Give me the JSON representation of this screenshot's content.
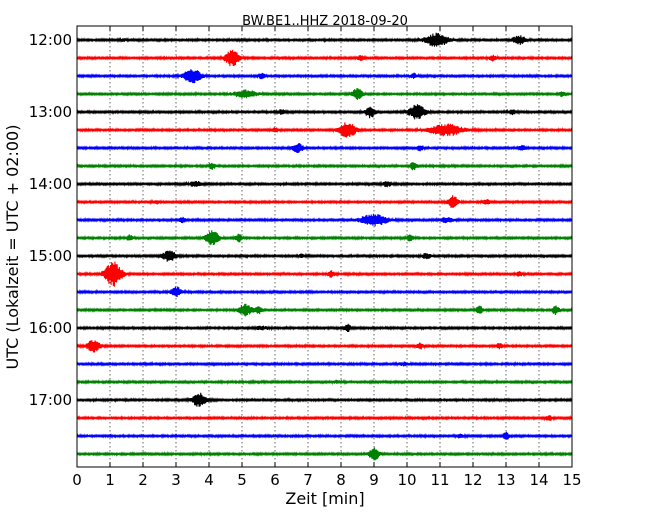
{
  "chart_data": {
    "type": "line",
    "title": "BW.BE1..HHZ 2018-09-20",
    "xlabel": "Zeit  [min]",
    "ylabel": "UTC (Lokalzeit = UTC + 02:00)",
    "xlim": [
      0,
      15
    ],
    "x_ticks": [
      "0",
      "1",
      "2",
      "3",
      "4",
      "5",
      "6",
      "7",
      "8",
      "9",
      "10",
      "11",
      "12",
      "13",
      "14",
      "15"
    ],
    "y_ticks": [
      "12:00",
      "13:00",
      "14:00",
      "15:00",
      "16:00",
      "17:00"
    ],
    "grid": "vertical dotted",
    "trace_colors": [
      "#000000",
      "#ff0000",
      "#0000ff",
      "#008000"
    ],
    "series": [
      {
        "start": "12:00",
        "color": "#000000",
        "events": [
          [
            10.9,
            0.8,
            0.35
          ],
          [
            13.4,
            0.5,
            0.2
          ],
          [
            1.4,
            0.15,
            0.1
          ]
        ]
      },
      {
        "start": "12:15",
        "color": "#ff0000",
        "events": [
          [
            4.7,
            1.0,
            0.2
          ],
          [
            8.6,
            0.4,
            0.1
          ],
          [
            12.6,
            0.35,
            0.1
          ]
        ]
      },
      {
        "start": "12:30",
        "color": "#0000ff",
        "events": [
          [
            3.5,
            0.9,
            0.25
          ],
          [
            5.6,
            0.4,
            0.1
          ],
          [
            10.2,
            0.3,
            0.1
          ]
        ]
      },
      {
        "start": "12:45",
        "color": "#008000",
        "events": [
          [
            8.5,
            0.7,
            0.15
          ],
          [
            5.1,
            0.45,
            0.35
          ],
          [
            14.7,
            0.3,
            0.1
          ]
        ]
      },
      {
        "start": "13:00",
        "color": "#000000",
        "events": [
          [
            8.9,
            0.7,
            0.15
          ],
          [
            10.3,
            0.9,
            0.25
          ],
          [
            6.2,
            0.3,
            0.1
          ],
          [
            13.2,
            0.3,
            0.1
          ]
        ]
      },
      {
        "start": "13:15",
        "color": "#ff0000",
        "events": [
          [
            8.2,
            1.0,
            0.25
          ],
          [
            11.2,
            0.7,
            0.5
          ],
          [
            6.0,
            0.3,
            0.1
          ]
        ]
      },
      {
        "start": "13:30",
        "color": "#0000ff",
        "events": [
          [
            6.7,
            0.6,
            0.15
          ],
          [
            10.4,
            0.35,
            0.1
          ],
          [
            13.5,
            0.3,
            0.1
          ]
        ]
      },
      {
        "start": "13:45",
        "color": "#008000",
        "events": [
          [
            4.1,
            0.4,
            0.1
          ],
          [
            10.2,
            0.5,
            0.1
          ]
        ]
      },
      {
        "start": "14:00",
        "color": "#000000",
        "events": [
          [
            3.6,
            0.3,
            0.2
          ],
          [
            9.4,
            0.3,
            0.15
          ]
        ]
      },
      {
        "start": "14:15",
        "color": "#ff0000",
        "events": [
          [
            11.4,
            0.8,
            0.15
          ],
          [
            12.4,
            0.35,
            0.1
          ],
          [
            2.4,
            0.2,
            0.1
          ]
        ]
      },
      {
        "start": "14:30",
        "color": "#0000ff",
        "events": [
          [
            9.0,
            0.7,
            0.4
          ],
          [
            3.2,
            0.3,
            0.1
          ],
          [
            11.2,
            0.3,
            0.2
          ]
        ]
      },
      {
        "start": "14:45",
        "color": "#008000",
        "events": [
          [
            4.1,
            0.9,
            0.2
          ],
          [
            4.9,
            0.5,
            0.1
          ],
          [
            1.6,
            0.35,
            0.1
          ],
          [
            10.1,
            0.4,
            0.1
          ]
        ]
      },
      {
        "start": "15:00",
        "color": "#000000",
        "events": [
          [
            2.8,
            0.7,
            0.2
          ],
          [
            10.6,
            0.3,
            0.15
          ],
          [
            6.8,
            0.2,
            0.1
          ]
        ]
      },
      {
        "start": "15:15",
        "color": "#ff0000",
        "events": [
          [
            1.1,
            1.5,
            0.25
          ],
          [
            7.7,
            0.4,
            0.1
          ],
          [
            13.4,
            0.3,
            0.1
          ]
        ]
      },
      {
        "start": "15:30",
        "color": "#0000ff",
        "events": [
          [
            3.0,
            0.7,
            0.15
          ]
        ]
      },
      {
        "start": "15:45",
        "color": "#008000",
        "events": [
          [
            5.1,
            0.7,
            0.2
          ],
          [
            5.5,
            0.5,
            0.1
          ],
          [
            12.2,
            0.5,
            0.1
          ],
          [
            14.5,
            0.6,
            0.1
          ]
        ]
      },
      {
        "start": "16:00",
        "color": "#000000",
        "events": [
          [
            8.2,
            0.45,
            0.1
          ],
          [
            5.6,
            0.2,
            0.2
          ]
        ]
      },
      {
        "start": "16:15",
        "color": "#ff0000",
        "events": [
          [
            0.5,
            0.75,
            0.2
          ],
          [
            10.4,
            0.35,
            0.1
          ],
          [
            12.8,
            0.3,
            0.1
          ]
        ]
      },
      {
        "start": "16:30",
        "color": "#0000ff",
        "events": [
          [
            9.9,
            0.2,
            0.15
          ]
        ]
      },
      {
        "start": "16:45",
        "color": "#008000",
        "events": [
          [
            7.9,
            0.15,
            0.15
          ]
        ]
      },
      {
        "start": "17:00",
        "color": "#000000",
        "events": [
          [
            3.7,
            0.85,
            0.2
          ]
        ]
      },
      {
        "start": "17:15",
        "color": "#ff0000",
        "events": [
          [
            14.3,
            0.3,
            0.1
          ]
        ]
      },
      {
        "start": "17:30",
        "color": "#0000ff",
        "events": [
          [
            13.0,
            0.45,
            0.1
          ],
          [
            11.6,
            0.25,
            0.1
          ]
        ]
      },
      {
        "start": "17:45",
        "color": "#008000",
        "events": [
          [
            9.0,
            0.8,
            0.15
          ]
        ]
      }
    ]
  }
}
